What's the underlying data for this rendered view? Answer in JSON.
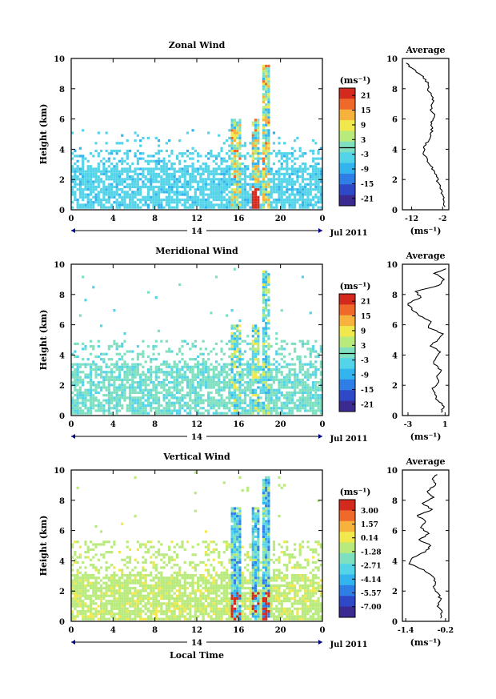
{
  "figure": {
    "xlabel": "Local Time",
    "unit_label": "(ms⁻¹)",
    "date_label": "Jul 2011",
    "day_label": "14",
    "colors": [
      "#3b2a8f",
      "#2f48c8",
      "#2f7ee6",
      "#33b4ef",
      "#54d4e8",
      "#7fe0c0",
      "#b8ea7c",
      "#f0e84c",
      "#f6b23c",
      "#ef6a2a",
      "#d42a1e"
    ]
  },
  "chart_data": [
    {
      "type": "heatmap",
      "title": "Zonal Wind",
      "xlabel": "",
      "ylabel": "Height (km)",
      "x_ticks": [
        "0",
        "4",
        "8",
        "12",
        "16",
        "20",
        "0"
      ],
      "x_range": [
        0,
        24
      ],
      "y_ticks": [
        "0",
        "2",
        "4",
        "6",
        "8",
        "10"
      ],
      "y_range": [
        0,
        10
      ],
      "colorbar": {
        "unit": "(ms⁻¹)",
        "ticks": [
          "21",
          "15",
          "9",
          "3",
          "-3",
          "-9",
          "-15",
          "-21"
        ],
        "range": [
          -24,
          24
        ]
      },
      "profile": {
        "title": "Average",
        "xlabel": "(ms⁻¹)",
        "x_ticks": [
          "-12",
          "-2"
        ],
        "x_range": [
          -15,
          0
        ],
        "y": [
          0.2,
          0.6,
          1.0,
          1.4,
          1.8,
          2.2,
          2.6,
          3.0,
          3.4,
          3.8,
          4.2,
          4.6,
          5.0,
          5.4,
          5.8,
          6.2,
          6.6,
          7.0,
          7.4,
          7.8,
          8.2,
          8.6,
          9.0,
          9.4,
          9.7
        ],
        "values": [
          -1.2,
          -1.6,
          -2.0,
          -2.8,
          -3.4,
          -4.0,
          -4.8,
          -6.2,
          -7.0,
          -8.2,
          -8.0,
          -6.4,
          -6.0,
          -5.2,
          -5.8,
          -4.6,
          -6.0,
          -5.4,
          -5.0,
          -6.4,
          -6.6,
          -7.4,
          -9.6,
          -12.2,
          -13.8
        ]
      }
    },
    {
      "type": "heatmap",
      "title": "Meridional Wind",
      "xlabel": "",
      "ylabel": "Height (km)",
      "x_ticks": [
        "0",
        "4",
        "8",
        "12",
        "16",
        "20",
        "0"
      ],
      "x_range": [
        0,
        24
      ],
      "y_ticks": [
        "0",
        "2",
        "4",
        "6",
        "8",
        "10"
      ],
      "y_range": [
        0,
        10
      ],
      "colorbar": {
        "unit": "(ms⁻¹)",
        "ticks": [
          "21",
          "15",
          "9",
          "3",
          "-3",
          "-9",
          "-15",
          "-21"
        ],
        "range": [
          -24,
          24
        ]
      },
      "profile": {
        "title": "Average",
        "xlabel": "(ms⁻¹)",
        "x_ticks": [
          "-3",
          "1"
        ],
        "x_range": [
          -3.6,
          1.4
        ],
        "y": [
          0.2,
          0.6,
          1.0,
          1.4,
          1.8,
          2.2,
          2.6,
          3.0,
          3.4,
          3.8,
          4.2,
          4.6,
          5.0,
          5.4,
          5.8,
          6.2,
          6.6,
          7.0,
          7.4,
          7.8,
          8.2,
          8.6,
          9.0,
          9.4,
          9.7
        ],
        "values": [
          0.6,
          0.9,
          0.2,
          -0.1,
          -0.4,
          0.3,
          0.1,
          0.6,
          -0.2,
          0.0,
          0.5,
          -0.6,
          0.2,
          0.8,
          -0.8,
          -0.5,
          -1.8,
          -2.6,
          -3.0,
          -1.6,
          -2.2,
          0.3,
          0.9,
          -0.2,
          1.1
        ]
      }
    },
    {
      "type": "heatmap",
      "title": "Vertical Wind",
      "xlabel": "Local Time",
      "ylabel": "Height (km)",
      "x_ticks": [
        "0",
        "4",
        "8",
        "12",
        "16",
        "20",
        "0"
      ],
      "x_range": [
        0,
        24
      ],
      "y_ticks": [
        "0",
        "2",
        "4",
        "6",
        "8",
        "10"
      ],
      "y_range": [
        0,
        10
      ],
      "colorbar": {
        "unit": "(ms⁻¹)",
        "ticks": [
          "3.00",
          "1.57",
          "0.14",
          "-1.28",
          "-2.71",
          "-4.14",
          "-5.57",
          "-7.00"
        ],
        "range": [
          -8.1,
          4.1
        ]
      },
      "profile": {
        "title": "Average",
        "xlabel": "(ms⁻¹)",
        "x_ticks": [
          "-1.4",
          "-0.2"
        ],
        "x_range": [
          -1.5,
          -0.1
        ],
        "y": [
          0.2,
          0.6,
          1.0,
          1.4,
          1.8,
          2.2,
          2.6,
          3.0,
          3.4,
          3.8,
          4.2,
          4.6,
          5.0,
          5.4,
          5.8,
          6.2,
          6.6,
          7.0,
          7.4,
          7.8,
          8.2,
          8.6,
          9.0,
          9.4,
          9.7
        ],
        "values": [
          -0.35,
          -0.3,
          -0.45,
          -0.35,
          -0.4,
          -0.55,
          -0.5,
          -0.6,
          -0.85,
          -1.3,
          -1.2,
          -0.8,
          -0.65,
          -1.0,
          -0.7,
          -0.95,
          -0.8,
          -1.05,
          -0.6,
          -0.9,
          -0.55,
          -0.75,
          -0.5,
          -0.6,
          -0.45
        ]
      }
    }
  ]
}
